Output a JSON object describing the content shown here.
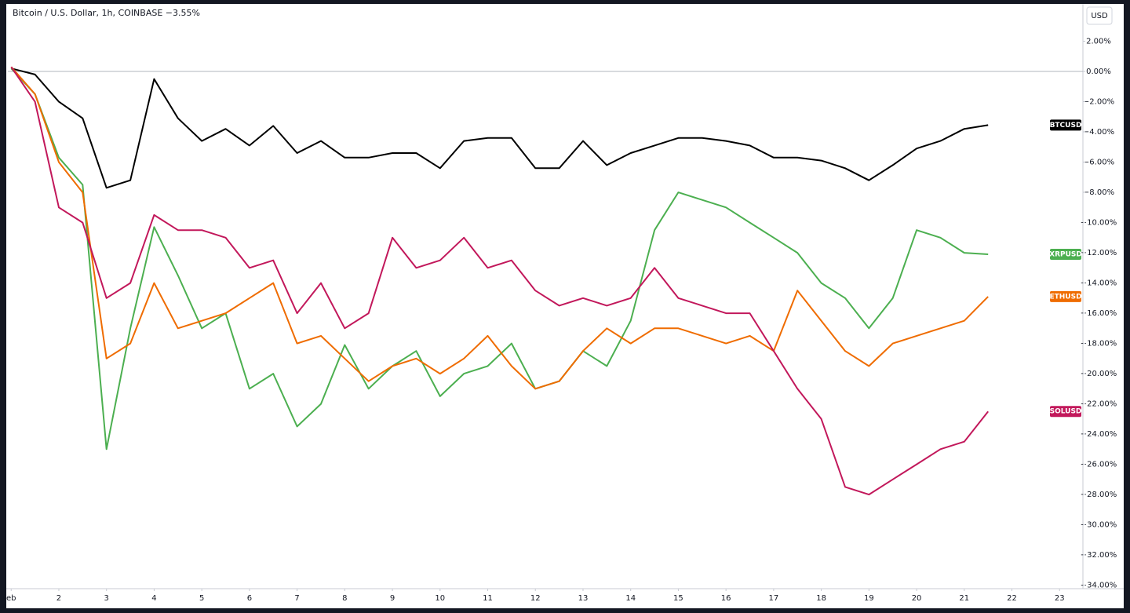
{
  "chart_data": {
    "type": "line",
    "title": "Bitcoin / U.S. Dollar, 1h, COINBASE −3.55%",
    "y_label": "USD",
    "x": [
      1,
      1.5,
      2,
      2.5,
      3,
      3.5,
      4,
      4.5,
      5,
      5.5,
      6,
      6.5,
      7,
      7.5,
      8,
      8.5,
      9,
      9.5,
      10,
      10.5,
      11,
      11.5,
      12,
      12.5,
      13,
      13.5,
      14,
      14.5,
      15,
      15.5,
      16,
      16.5,
      17,
      17.5,
      18,
      18.5,
      19,
      19.5,
      20,
      20.5,
      21,
      21.5
    ],
    "xlim": [
      0.93,
      23.49
    ],
    "xticks": [
      {
        "value": 1,
        "label": "eb"
      },
      2,
      3,
      4,
      5,
      6,
      7,
      8,
      9,
      10,
      11,
      12,
      13,
      14,
      15,
      16,
      17,
      18,
      19,
      20,
      21,
      22,
      23
    ],
    "ylim": [
      -34.23,
      4.47
    ],
    "yticks": [
      {
        "value": 2,
        "label": "2.00%"
      },
      {
        "value": 0,
        "label": "0.00%"
      },
      {
        "value": -2,
        "label": "−2.00%"
      },
      {
        "value": -4,
        "label": "−4.00%"
      },
      {
        "value": -6,
        "label": "−6.00%"
      },
      {
        "value": -8,
        "label": "−8.00%"
      },
      {
        "value": -10,
        "label": "−10.00%"
      },
      {
        "value": -12,
        "label": "−12.00%"
      },
      {
        "value": -14,
        "label": "−14.00%"
      },
      {
        "value": -16,
        "label": "−16.00%"
      },
      {
        "value": -18,
        "label": "−18.00%"
      },
      {
        "value": -20,
        "label": "−20.00%"
      },
      {
        "value": -22,
        "label": "−22.00%"
      },
      {
        "value": -24,
        "label": "−24.00%"
      },
      {
        "value": -26,
        "label": "−26.00%"
      },
      {
        "value": -28,
        "label": "−28.00%"
      },
      {
        "value": -30,
        "label": "−30.00%"
      },
      {
        "value": -32,
        "label": "−32.00%"
      },
      {
        "value": -34,
        "label": "−34.00%"
      }
    ],
    "grid": false,
    "series": [
      {
        "name": "BTCUSD",
        "color": "#000000",
        "values": [
          0.2,
          -0.2,
          -2.0,
          -3.1,
          -7.7,
          -7.2,
          -0.5,
          -3.1,
          -4.6,
          -3.8,
          -4.9,
          -3.6,
          -5.4,
          -4.6,
          -5.7,
          -5.7,
          -5.4,
          -5.4,
          -6.4,
          -4.6,
          -4.4,
          -4.4,
          -6.4,
          -6.4,
          -4.6,
          -6.2,
          -5.4,
          -4.9,
          -4.4,
          -4.4,
          -4.6,
          -4.9,
          -5.7,
          -5.7,
          -5.9,
          -6.4,
          -7.2,
          -6.2,
          -5.1,
          -4.6,
          -3.8,
          -3.55
        ]
      },
      {
        "name": "XRPUSD",
        "color": "#4caf50",
        "values": [
          0.2,
          -1.5,
          -5.7,
          -7.5,
          -25,
          -17,
          -10.3,
          -13.5,
          -17,
          -16,
          -21,
          -20,
          -23.5,
          -22,
          -18.1,
          -21,
          -19.5,
          -18.5,
          -21.5,
          -20,
          -19.5,
          -18,
          -21,
          -20.5,
          -18.5,
          -19.5,
          -16.5,
          -10.5,
          -8,
          -8.5,
          -9,
          -10,
          -11,
          -12,
          -14,
          -15,
          -17,
          -15,
          -10.5,
          -11,
          -12,
          -12.1
        ]
      },
      {
        "name": "ETHUSD",
        "color": "#ef6c00",
        "values": [
          0.3,
          -1.5,
          -6,
          -8,
          -19,
          -18,
          -14,
          -17,
          -16.5,
          -16,
          -15,
          -14,
          -18,
          -17.5,
          -19,
          -20.5,
          -19.5,
          -19,
          -20,
          -19,
          -17.5,
          -19.5,
          -21,
          -20.5,
          -18.5,
          -17,
          -18,
          -17,
          -17,
          -17.5,
          -18,
          -17.5,
          -18.5,
          -14.5,
          -16.5,
          -18.5,
          -19.5,
          -18,
          -17.5,
          -17,
          -16.5,
          -14.9
        ]
      },
      {
        "name": "SOLUSD",
        "color": "#c2185b",
        "values": [
          0.3,
          -2,
          -9,
          -10,
          -15,
          -14,
          -9.5,
          -10.5,
          -10.5,
          -11,
          -13,
          -12.5,
          -16,
          -14,
          -17,
          -16,
          -11,
          -13,
          -12.5,
          -11,
          -13,
          -12.5,
          -14.5,
          -15.5,
          -15,
          -15.5,
          -15,
          -13,
          -15,
          -15.5,
          -16,
          -16,
          -18.5,
          -21,
          -23,
          -27.5,
          -28,
          -27,
          -26,
          -25,
          -24.5,
          -22.5
        ]
      }
    ]
  }
}
